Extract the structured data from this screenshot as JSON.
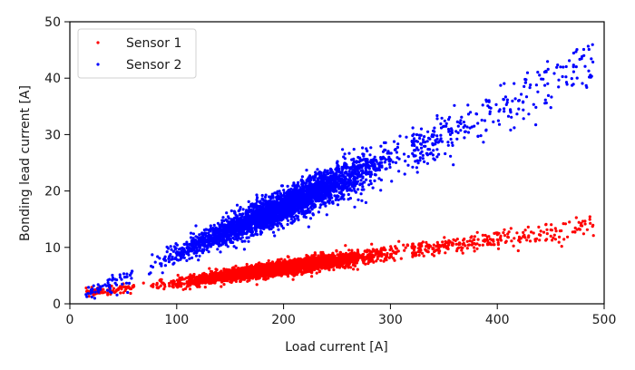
{
  "chart_data": {
    "type": "scatter",
    "title": "",
    "xlabel": "Load current [A]",
    "ylabel": "Bonding lead current [A]",
    "xlim": [
      0,
      500
    ],
    "ylim": [
      0,
      50
    ],
    "xticks": [
      0,
      100,
      200,
      300,
      400,
      500
    ],
    "yticks": [
      0,
      10,
      20,
      30,
      40,
      50
    ],
    "grid": false,
    "legend_position": "upper left",
    "series": [
      {
        "name": "Sensor 1",
        "color": "#ff0000",
        "trend": {
          "slope": 0.026,
          "intercept": 1.2
        },
        "x": [
          15,
          20,
          40,
          60,
          80,
          100,
          120,
          140,
          160,
          180,
          200,
          220,
          240,
          260,
          280,
          300,
          320,
          340,
          360,
          380,
          400,
          420,
          440,
          460,
          480,
          490
        ],
        "y": [
          2.0,
          2.2,
          2.3,
          2.8,
          3.3,
          3.7,
          4.2,
          4.8,
          5.3,
          5.9,
          6.4,
          6.9,
          7.4,
          7.9,
          8.5,
          9.0,
          9.5,
          10.0,
          10.5,
          10.8,
          11.4,
          11.8,
          12.3,
          12.8,
          13.6,
          13.8
        ]
      },
      {
        "name": "Sensor 2",
        "color": "#0000ff",
        "trend": {
          "slope": 0.086,
          "intercept": 0.0
        },
        "x": [
          15,
          20,
          40,
          60,
          80,
          100,
          120,
          140,
          160,
          180,
          200,
          220,
          240,
          260,
          280,
          300,
          320,
          340,
          360,
          380,
          400,
          420,
          440,
          460,
          470,
          480,
          490
        ],
        "y": [
          0.5,
          2.0,
          3.5,
          5.0,
          7.0,
          8.8,
          10.6,
          12.3,
          14.0,
          15.6,
          17.2,
          18.9,
          20.6,
          22.3,
          24.0,
          25.6,
          27.3,
          29.0,
          30.6,
          32.2,
          34.0,
          36.0,
          38.0,
          40.0,
          41.5,
          43.0,
          42.5
        ]
      }
    ]
  }
}
